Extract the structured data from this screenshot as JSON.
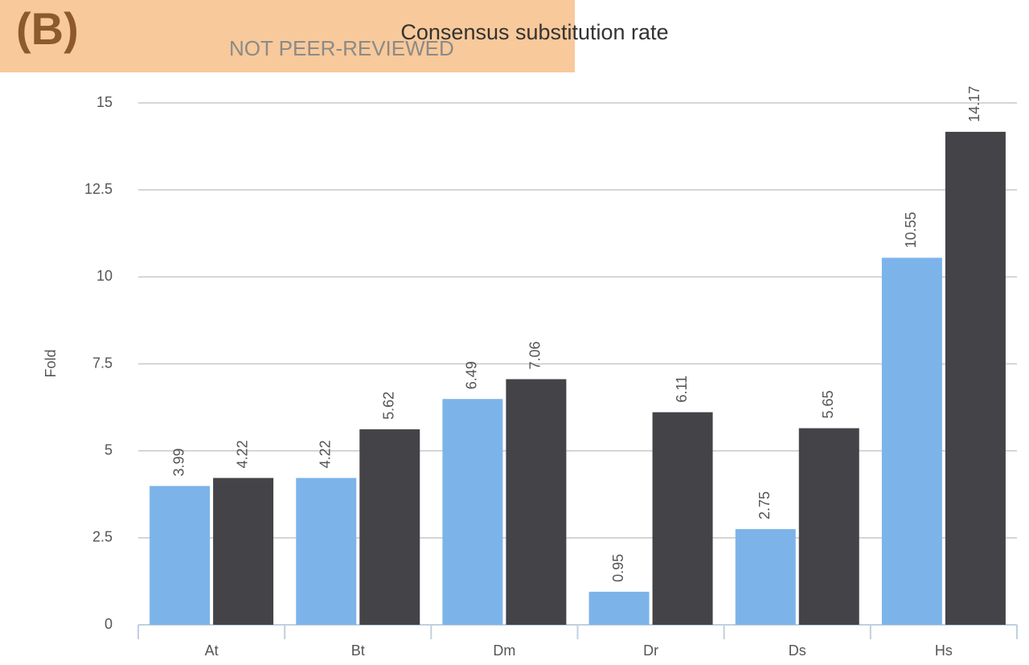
{
  "chart_data": {
    "type": "bar",
    "title": "Consensus substitution rate",
    "annotations": [
      "(B)",
      "NOT PEER-REVIEWED"
    ],
    "ylabel": "Fold",
    "categories": [
      "At",
      "Bt",
      "Dm",
      "Dr",
      "Ds",
      "Hs"
    ],
    "series": [
      {
        "color": "#7cb4ea",
        "values": [
          3.99,
          4.22,
          6.49,
          0.95,
          2.75,
          10.55
        ]
      },
      {
        "color": "#434348",
        "values": [
          4.22,
          5.62,
          7.06,
          6.11,
          5.65,
          14.17
        ]
      }
    ],
    "ylim": [
      0,
      15
    ],
    "yticks": [
      0,
      2.5,
      5,
      7.5,
      10,
      12.5,
      15
    ],
    "grid": true
  }
}
